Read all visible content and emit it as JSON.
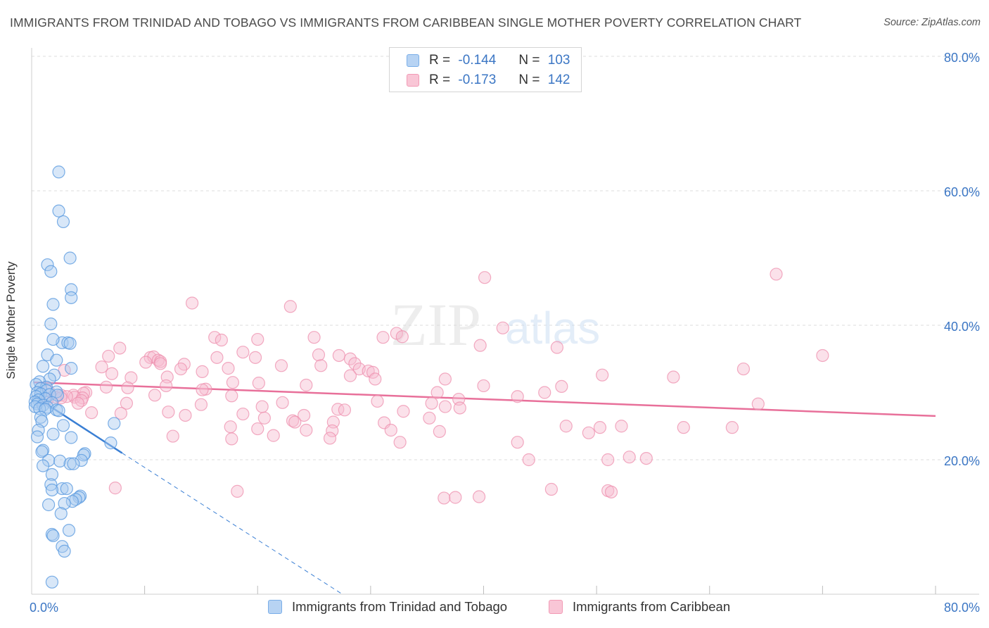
{
  "title": "IMMIGRANTS FROM TRINIDAD AND TOBAGO VS IMMIGRANTS FROM CARIBBEAN SINGLE MOTHER POVERTY CORRELATION CHART",
  "source": "Source: ZipAtlas.com",
  "watermark": {
    "zip": "ZIP",
    "atlas": "atlas"
  },
  "legend": {
    "r_label": "R =",
    "n_label": "N =",
    "rows": [
      {
        "r": "-0.144",
        "n": "103",
        "color": "#7aaee8"
      },
      {
        "r": "-0.173",
        "n": "142",
        "color": "#f29ab5"
      }
    ]
  },
  "colors": {
    "blue": "#4a8fdb",
    "blue_fill": "#a9c9f0",
    "pink": "#e8709a",
    "pink_fill": "#f7bdd0",
    "axis_text": "#3b76c4",
    "grid": "#dddddd"
  },
  "chart_data": {
    "type": "scatter",
    "title": "IMMIGRANTS FROM TRINIDAD AND TOBAGO VS IMMIGRANTS FROM CARIBBEAN SINGLE MOTHER POVERTY CORRELATION CHART",
    "xlabel": "",
    "ylabel": "Single Mother Poverty",
    "xlim": [
      0,
      80
    ],
    "ylim": [
      0,
      80
    ],
    "x_tick_labels": [
      "0.0%",
      "80.0%"
    ],
    "y_tick_labels": [
      "20.0%",
      "40.0%",
      "60.0%",
      "80.0%"
    ],
    "y_ticks": [
      20,
      40,
      60,
      80
    ],
    "grid": true,
    "legend_position": "top-center and bottom",
    "series": [
      {
        "name": "Immigrants from Trinidad and Tobago",
        "r": -0.144,
        "n": 103,
        "trend": {
          "x": [
            0.2,
            8.0
          ],
          "y": [
            29.5,
            21.0
          ],
          "dashed_to": [
            27.5,
            0.0
          ]
        },
        "points": [
          [
            2.4,
            62.8
          ],
          [
            2.4,
            57.0
          ],
          [
            2.8,
            55.4
          ],
          [
            1.4,
            49.0
          ],
          [
            3.4,
            50.0
          ],
          [
            1.7,
            48.0
          ],
          [
            3.5,
            45.3
          ],
          [
            3.5,
            44.1
          ],
          [
            1.9,
            43.1
          ],
          [
            1.7,
            40.2
          ],
          [
            2.7,
            37.4
          ],
          [
            3.2,
            37.4
          ],
          [
            3.4,
            37.3
          ],
          [
            1.9,
            37.9
          ],
          [
            1.4,
            35.6
          ],
          [
            2.2,
            34.8
          ],
          [
            1.0,
            33.9
          ],
          [
            3.5,
            33.6
          ],
          [
            2.0,
            32.6
          ],
          [
            1.6,
            32.0
          ],
          [
            0.7,
            31.6
          ],
          [
            0.4,
            31.2
          ],
          [
            1.3,
            30.8
          ],
          [
            0.8,
            30.6
          ],
          [
            1.3,
            30.3
          ],
          [
            2.2,
            30.1
          ],
          [
            0.5,
            30.0
          ],
          [
            0.8,
            29.8
          ],
          [
            1.6,
            29.7
          ],
          [
            2.3,
            29.6
          ],
          [
            0.4,
            29.4
          ],
          [
            1.2,
            29.1
          ],
          [
            0.6,
            28.9
          ],
          [
            0.3,
            28.6
          ],
          [
            1.8,
            28.5
          ],
          [
            0.5,
            28.3
          ],
          [
            1.0,
            28.1
          ],
          [
            0.3,
            27.9
          ],
          [
            1.4,
            27.8
          ],
          [
            0.7,
            27.6
          ],
          [
            1.2,
            27.5
          ],
          [
            2.2,
            27.4
          ],
          [
            2.4,
            27.3
          ],
          [
            0.8,
            26.3
          ],
          [
            0.9,
            25.7
          ],
          [
            2.8,
            25.1
          ],
          [
            7.3,
            25.4
          ],
          [
            0.6,
            24.4
          ],
          [
            1.9,
            23.8
          ],
          [
            0.5,
            23.4
          ],
          [
            7.0,
            22.5
          ],
          [
            3.5,
            23.3
          ],
          [
            1.0,
            21.4
          ],
          [
            0.9,
            21.2
          ],
          [
            4.7,
            20.9
          ],
          [
            4.6,
            20.7
          ],
          [
            1.5,
            19.9
          ],
          [
            2.5,
            19.8
          ],
          [
            4.4,
            19.9
          ],
          [
            3.4,
            19.4
          ],
          [
            3.7,
            19.4
          ],
          [
            1.0,
            19.1
          ],
          [
            1.8,
            17.8
          ],
          [
            1.7,
            16.3
          ],
          [
            2.7,
            15.7
          ],
          [
            3.1,
            15.7
          ],
          [
            1.8,
            15.5
          ],
          [
            4.3,
            14.6
          ],
          [
            4.2,
            14.4
          ],
          [
            3.9,
            14.1
          ],
          [
            3.6,
            13.8
          ],
          [
            2.9,
            13.5
          ],
          [
            1.5,
            13.3
          ],
          [
            2.6,
            12.0
          ],
          [
            3.3,
            9.5
          ],
          [
            1.8,
            8.9
          ],
          [
            1.9,
            8.7
          ],
          [
            2.7,
            7.1
          ],
          [
            2.9,
            6.4
          ],
          [
            1.8,
            1.8
          ]
        ]
      },
      {
        "name": "Immigrants from Caribbean",
        "r": -0.173,
        "n": 142,
        "trend": {
          "x": [
            0.2,
            80.0
          ],
          "y": [
            31.5,
            26.5
          ]
        },
        "points": [
          [
            65.9,
            47.6
          ],
          [
            40.1,
            47.1
          ],
          [
            14.2,
            43.3
          ],
          [
            22.9,
            42.8
          ],
          [
            32.3,
            38.8
          ],
          [
            41.7,
            39.6
          ],
          [
            25.0,
            38.2
          ],
          [
            31.1,
            38.2
          ],
          [
            32.8,
            38.3
          ],
          [
            16.2,
            38.2
          ],
          [
            16.8,
            37.8
          ],
          [
            20.0,
            37.9
          ],
          [
            39.7,
            37.0
          ],
          [
            46.5,
            36.7
          ],
          [
            7.8,
            36.6
          ],
          [
            18.7,
            36.0
          ],
          [
            25.4,
            35.6
          ],
          [
            27.2,
            35.5
          ],
          [
            70.0,
            35.5
          ],
          [
            6.8,
            35.4
          ],
          [
            10.5,
            35.2
          ],
          [
            10.8,
            35.3
          ],
          [
            11.2,
            34.8
          ],
          [
            11.4,
            34.6
          ],
          [
            16.4,
            35.2
          ],
          [
            19.8,
            35.2
          ],
          [
            28.2,
            35.0
          ],
          [
            10.1,
            34.5
          ],
          [
            11.4,
            34.3
          ],
          [
            13.5,
            34.2
          ],
          [
            22.1,
            34.0
          ],
          [
            25.6,
            34.0
          ],
          [
            6.2,
            33.8
          ],
          [
            13.2,
            33.5
          ],
          [
            17.4,
            33.6
          ],
          [
            28.6,
            34.3
          ],
          [
            29.0,
            33.5
          ],
          [
            29.8,
            33.2
          ],
          [
            2.9,
            33.3
          ],
          [
            7.1,
            32.8
          ],
          [
            15.1,
            33.1
          ],
          [
            30.2,
            33.0
          ],
          [
            63.0,
            33.5
          ],
          [
            8.8,
            32.2
          ],
          [
            28.2,
            32.5
          ],
          [
            50.5,
            32.6
          ],
          [
            56.8,
            32.3
          ],
          [
            12.0,
            32.3
          ],
          [
            17.8,
            31.5
          ],
          [
            20.1,
            31.4
          ],
          [
            30.4,
            32.0
          ],
          [
            36.6,
            32.0
          ],
          [
            11.9,
            31.0
          ],
          [
            24.3,
            31.1
          ],
          [
            40.0,
            31.0
          ],
          [
            46.9,
            30.9
          ],
          [
            6.6,
            30.8
          ],
          [
            8.5,
            30.7
          ],
          [
            15.4,
            30.5
          ],
          [
            15.1,
            30.4
          ],
          [
            35.9,
            30.0
          ],
          [
            45.4,
            30.0
          ],
          [
            4.8,
            30.0
          ],
          [
            1.5,
            30.2
          ],
          [
            4.6,
            29.9
          ],
          [
            3.7,
            29.6
          ],
          [
            2.6,
            29.6
          ],
          [
            3.8,
            29.3
          ],
          [
            4.5,
            29.2
          ],
          [
            3.1,
            29.4
          ],
          [
            2.1,
            29.3
          ],
          [
            1.4,
            29.0
          ],
          [
            2.6,
            29.2
          ],
          [
            10.9,
            29.6
          ],
          [
            17.7,
            29.5
          ],
          [
            43.0,
            29.4
          ],
          [
            37.8,
            29.0
          ],
          [
            4.4,
            28.8
          ],
          [
            8.4,
            28.4
          ],
          [
            4.1,
            28.4
          ],
          [
            22.2,
            28.5
          ],
          [
            15.0,
            28.2
          ],
          [
            30.6,
            28.7
          ],
          [
            35.4,
            28.4
          ],
          [
            36.6,
            27.9
          ],
          [
            37.9,
            27.7
          ],
          [
            20.4,
            27.9
          ],
          [
            64.3,
            28.3
          ],
          [
            27.1,
            27.5
          ],
          [
            27.7,
            27.4
          ],
          [
            5.3,
            27.0
          ],
          [
            12.1,
            27.1
          ],
          [
            18.7,
            26.8
          ],
          [
            32.9,
            27.2
          ],
          [
            7.9,
            26.9
          ],
          [
            13.6,
            26.6
          ],
          [
            24.1,
            26.6
          ],
          [
            20.6,
            26.2
          ],
          [
            35.2,
            26.2
          ],
          [
            23.1,
            25.8
          ],
          [
            23.3,
            25.6
          ],
          [
            26.7,
            25.6
          ],
          [
            31.2,
            25.5
          ],
          [
            47.3,
            25.0
          ],
          [
            52.2,
            25.0
          ],
          [
            50.3,
            24.8
          ],
          [
            57.7,
            24.8
          ],
          [
            62.0,
            24.8
          ],
          [
            17.6,
            24.9
          ],
          [
            20.0,
            24.6
          ],
          [
            31.8,
            24.4
          ],
          [
            24.3,
            24.4
          ],
          [
            26.6,
            24.3
          ],
          [
            36.1,
            24.2
          ],
          [
            49.3,
            24.0
          ],
          [
            12.5,
            23.5
          ],
          [
            21.4,
            23.6
          ],
          [
            17.7,
            23.1
          ],
          [
            26.4,
            23.2
          ],
          [
            32.6,
            22.6
          ],
          [
            43.0,
            22.6
          ],
          [
            52.9,
            20.4
          ],
          [
            54.4,
            20.2
          ],
          [
            51.0,
            20.0
          ],
          [
            44.0,
            20.0
          ],
          [
            7.4,
            15.8
          ],
          [
            46.0,
            15.6
          ],
          [
            18.2,
            15.3
          ],
          [
            51.0,
            15.4
          ],
          [
            51.3,
            15.2
          ],
          [
            36.5,
            14.3
          ],
          [
            37.5,
            14.4
          ],
          [
            39.6,
            14.5
          ]
        ]
      }
    ]
  }
}
